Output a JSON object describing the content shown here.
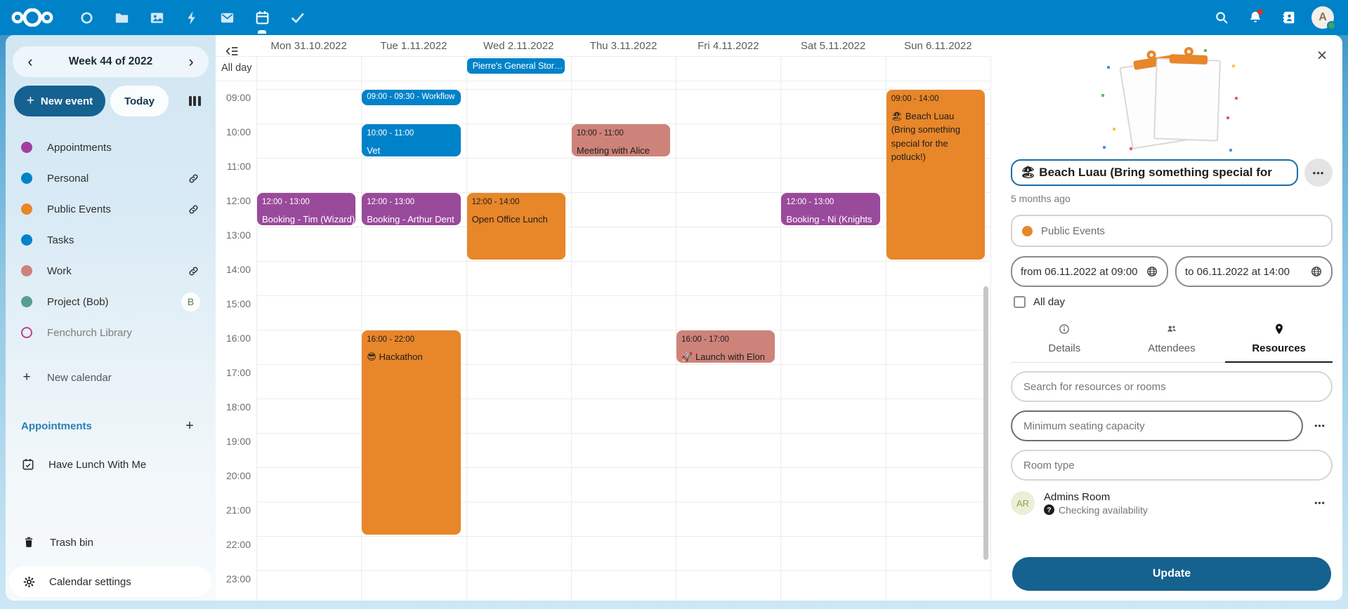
{
  "colors": {
    "blue": "#0082c9",
    "purple": "#9a4a9b",
    "orange": "#e8862a",
    "rose": "#cd837a",
    "primary_dark": "#15618f",
    "topbar": "#0082c9"
  },
  "topbar": {
    "apps": [
      {
        "name": "dashboard",
        "active": false
      },
      {
        "name": "files",
        "active": false
      },
      {
        "name": "photos",
        "active": false
      },
      {
        "name": "activity",
        "active": false
      },
      {
        "name": "mail",
        "active": false
      },
      {
        "name": "calendar",
        "active": true
      },
      {
        "name": "tasks",
        "active": false
      }
    ],
    "avatar_letter": "A"
  },
  "sidebar": {
    "week_title": "Week 44 of 2022",
    "new_event_label": "New event",
    "today_label": "Today",
    "calendars": [
      {
        "label": "Appointments",
        "color": "#a33ea1",
        "shape": "dot"
      },
      {
        "label": "Personal",
        "color": "#0082c9",
        "shape": "dot",
        "link": true
      },
      {
        "label": "Public Events",
        "color": "#e8862a",
        "shape": "dot",
        "link": true
      },
      {
        "label": "Tasks",
        "color": "#0082c9",
        "shape": "dot"
      },
      {
        "label": "Work",
        "color": "#cd837a",
        "shape": "dot",
        "link": true
      },
      {
        "label": "Project (Bob)",
        "color": "#569e93",
        "shape": "dot",
        "badge": "B"
      },
      {
        "label": "Fenchurch Library",
        "color": "#c2418e",
        "shape": "ring",
        "muted": true
      }
    ],
    "new_calendar_label": "New calendar",
    "section_heading": "Appointments",
    "appointment_items": [
      {
        "label": "Have Lunch With Me"
      }
    ],
    "trash_label": "Trash bin",
    "settings_label": "Calendar settings"
  },
  "calendar": {
    "all_day_label": "All day",
    "days": [
      "Mon 31.10.2022",
      "Tue 1.11.2022",
      "Wed 2.11.2022",
      "Thu 3.11.2022",
      "Fri 4.11.2022",
      "Sat 5.11.2022",
      "Sun 6.11.2022"
    ],
    "hours": [
      "09:00",
      "10:00",
      "11:00",
      "12:00",
      "13:00",
      "14:00",
      "15:00",
      "16:00",
      "17:00",
      "18:00",
      "19:00",
      "20:00",
      "21:00",
      "22:00",
      "23:00"
    ],
    "all_day_events": [
      {
        "day": 2,
        "title": "Pierre's General Stor…",
        "color": "blue"
      }
    ],
    "events": [
      {
        "day": 0,
        "start": 12,
        "end": 13,
        "time": "12:00 - 13:00",
        "title": "Booking - Tim (Wizard)",
        "color": "purple"
      },
      {
        "day": 1,
        "start": 9,
        "end": 9.5,
        "time": "09:00 - 09:30 - Workflow",
        "title": "",
        "color": "blue",
        "compact": true
      },
      {
        "day": 1,
        "start": 10,
        "end": 11,
        "time": "10:00 - 11:00",
        "title": "Vet",
        "color": "blue"
      },
      {
        "day": 1,
        "start": 12,
        "end": 13,
        "time": "12:00 - 13:00",
        "title": "Booking - Arthur Dent",
        "color": "purple"
      },
      {
        "day": 1,
        "start": 16,
        "end": 22,
        "time": "16:00 - 22:00",
        "title": "😎 Hackathon",
        "color": "orange"
      },
      {
        "day": 2,
        "start": 12,
        "end": 14,
        "time": "12:00 - 14:00",
        "title": "Open Office Lunch",
        "color": "orange"
      },
      {
        "day": 3,
        "start": 10,
        "end": 11,
        "time": "10:00 - 11:00",
        "title": "Meeting with Alice",
        "color": "rose"
      },
      {
        "day": 4,
        "start": 16,
        "end": 17,
        "time": "16:00 - 17:00",
        "title": "🚀 Launch with Elon",
        "color": "rose"
      },
      {
        "day": 5,
        "start": 12,
        "end": 13,
        "time": "12:00 - 13:00",
        "title": "Booking - Ni (Knights",
        "color": "purple"
      },
      {
        "day": 6,
        "start": 9,
        "end": 14,
        "time": "09:00 - 14:00",
        "title": "🏖 Beach Luau (Bring something special for the potluck!)",
        "color": "orange",
        "wrap": true
      }
    ]
  },
  "panel": {
    "title": "🏖 Beach Luau (Bring something special for",
    "modified": "5 months ago",
    "calendar_name": "Public Events",
    "calendar_color": "#e8862a",
    "from": "from 06.11.2022 at 09:00",
    "to": "to 06.11.2022 at 14:00",
    "all_day_label": "All day",
    "tabs": [
      {
        "label": "Details",
        "icon": "info",
        "active": false
      },
      {
        "label": "Attendees",
        "icon": "attendees",
        "active": false
      },
      {
        "label": "Resources",
        "icon": "pin",
        "active": true
      }
    ],
    "search_placeholder": "Search for resources or rooms",
    "capacity_placeholder": "Minimum seating capacity",
    "room_type_placeholder": "Room type",
    "resource": {
      "initials": "AR",
      "name": "Admins Room",
      "status": "Checking availability"
    },
    "update_label": "Update"
  }
}
